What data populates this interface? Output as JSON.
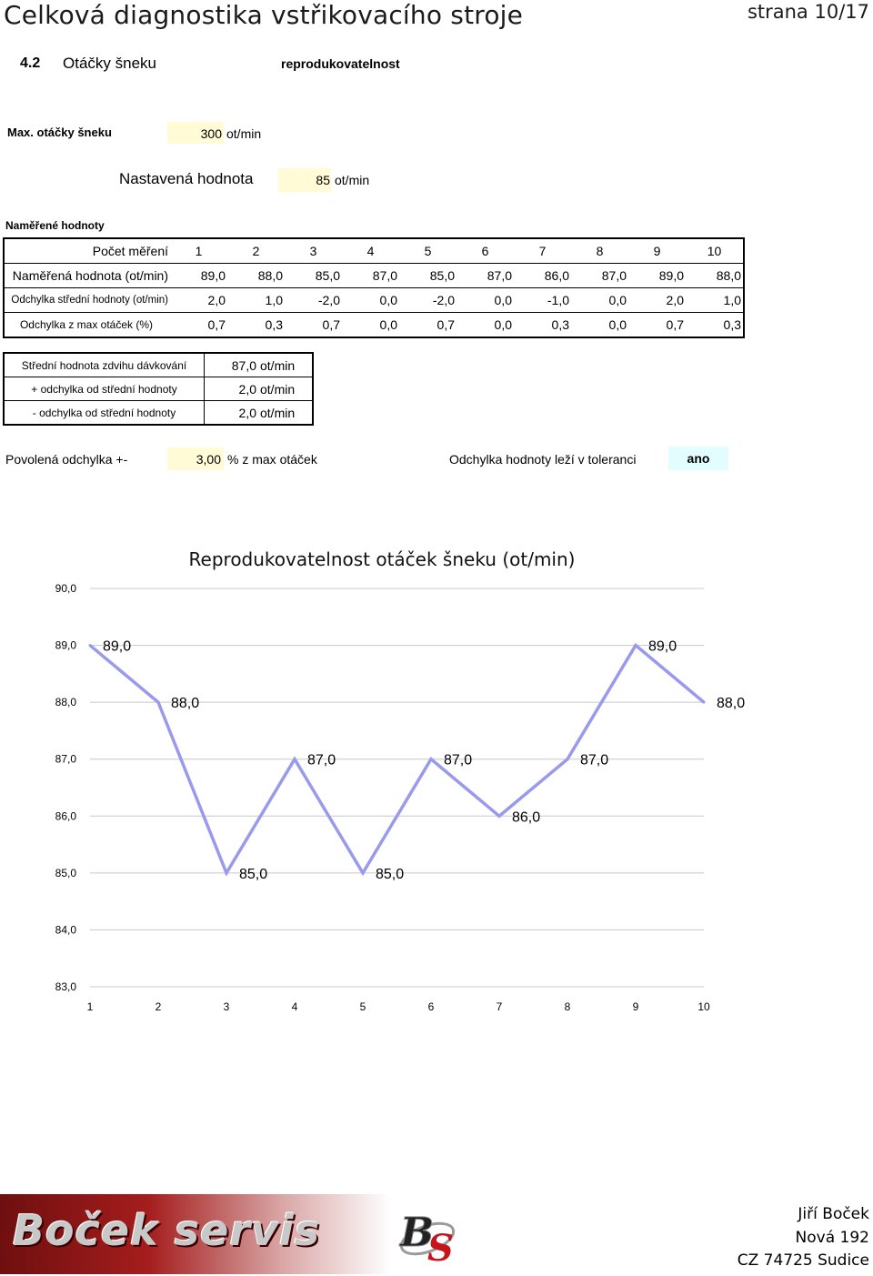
{
  "header": {
    "title": "Celková diagnostika vstřikovacího stroje",
    "page": "strana 10/17"
  },
  "section": {
    "number": "4.2",
    "name": "Otáčky šneku",
    "subtitle": "reprodukovatelnost"
  },
  "max_speed": {
    "label": "Max. otáčky šneku",
    "value": "300",
    "unit": "ot/min"
  },
  "set_value": {
    "label": "Nastavená hodnota",
    "value": "85",
    "unit": "ot/min"
  },
  "measured": {
    "heading": "Naměřené hodnoty",
    "rows": [
      {
        "label": "Počet měření",
        "values": [
          "1",
          "2",
          "3",
          "4",
          "5",
          "6",
          "7",
          "8",
          "9",
          "10"
        ]
      },
      {
        "label": "Naměřená hodnota (ot/min)",
        "values": [
          "89,0",
          "88,0",
          "85,0",
          "87,0",
          "85,0",
          "87,0",
          "86,0",
          "87,0",
          "89,0",
          "88,0"
        ]
      },
      {
        "label": "Odchylka střední hodnoty (ot/min)",
        "values": [
          "2,0",
          "1,0",
          "-2,0",
          "0,0",
          "-2,0",
          "0,0",
          "-1,0",
          "0,0",
          "2,0",
          "1,0"
        ]
      },
      {
        "label": "Odchylka z max otáček (%)",
        "values": [
          "0,7",
          "0,3",
          "0,7",
          "0,0",
          "0,7",
          "0,0",
          "0,3",
          "0,0",
          "0,7",
          "0,3"
        ]
      }
    ]
  },
  "stats": [
    {
      "label": "Střední hodnota zdvihu dávkování",
      "value": "87,0",
      "unit": "ot/min"
    },
    {
      "label": "+ odchylka od střední hodnoty",
      "value": "2,0",
      "unit": "ot/min"
    },
    {
      "label": "- odchylka od střední hodnoty",
      "value": "2,0",
      "unit": "ot/min"
    }
  ],
  "tolerance": {
    "label": "Povolená odchylka +-",
    "value": "3,00",
    "unit": "% z max otáček",
    "question": "Odchylka hodnoty leží v toleranci",
    "answer": "ano"
  },
  "chart_data": {
    "type": "line",
    "title": "Reprodukovatelnost otáček šneku (ot/min)",
    "x": [
      1,
      2,
      3,
      4,
      5,
      6,
      7,
      8,
      9,
      10
    ],
    "values": [
      89.0,
      88.0,
      85.0,
      87.0,
      85.0,
      87.0,
      86.0,
      87.0,
      89.0,
      88.0
    ],
    "data_labels": [
      "89,0",
      "88,0",
      "85,0",
      "87,0",
      "85,0",
      "87,0",
      "86,0",
      "87,0",
      "89,0",
      "88,0"
    ],
    "ylim": [
      83,
      90
    ],
    "y_ticks": [
      "83,0",
      "84,0",
      "85,0",
      "86,0",
      "87,0",
      "88,0",
      "89,0",
      "90,0"
    ],
    "x_ticks": [
      "1",
      "2",
      "3",
      "4",
      "5",
      "6",
      "7",
      "8",
      "9",
      "10"
    ],
    "grid": true,
    "line_color": "#9999ee"
  },
  "footer": {
    "logo": "Boček servis",
    "mark": "BS",
    "address": [
      "Jiří Boček",
      "Nová 192",
      "CZ 74725 Sudice"
    ]
  }
}
